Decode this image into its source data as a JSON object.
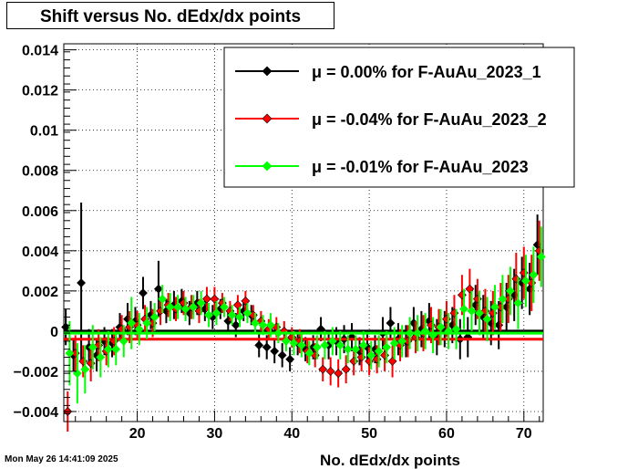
{
  "title": "Shift versus No. dEdx/dx points",
  "footer_timestamp": "Mon May 26 14:41:09 2025",
  "chart_data": {
    "type": "scatter",
    "title": "Shift versus No. dEdx/dx points",
    "xlabel": "No. dEdx/dx points",
    "ylabel": "",
    "xlim": [
      10.5,
      72.5
    ],
    "ylim": [
      -0.0045,
      0.0143
    ],
    "x_ticks": [
      20,
      30,
      40,
      50,
      60,
      70
    ],
    "y_ticks": [
      -0.004,
      -0.002,
      0,
      0.002,
      0.004,
      0.006,
      0.008,
      0.01,
      0.012,
      0.014
    ],
    "y_tick_labels": [
      "−0.004",
      "−0.002",
      "0",
      "0.002",
      "0.004",
      "0.006",
      "0.008",
      "0.01",
      "0.012",
      "0.014"
    ],
    "grid": true,
    "legend_position": "top-right",
    "series": [
      {
        "name": "μ =  0.00% for F-AuAu_2023_1",
        "color": "#000000",
        "mean": 0.0,
        "x": [
          11,
          12,
          13,
          14,
          15,
          16,
          17,
          18,
          19,
          20,
          21,
          22,
          23,
          24,
          25,
          26,
          27,
          28,
          29,
          30,
          31,
          32,
          33,
          34,
          35,
          36,
          37,
          38,
          39,
          40,
          41,
          42,
          43,
          44,
          45,
          46,
          47,
          48,
          49,
          50,
          51,
          52,
          53,
          54,
          55,
          56,
          57,
          58,
          59,
          60,
          61,
          62,
          63,
          64,
          65,
          66,
          67,
          68,
          69,
          70,
          71,
          72
        ],
        "y": [
          0.0002,
          -0.0012,
          0.0024,
          -0.0008,
          -0.0012,
          -0.0005,
          -0.0006,
          0.0002,
          0.0006,
          0.0005,
          0.0019,
          0.0008,
          0.0021,
          0.001,
          0.0013,
          0.0015,
          0.0009,
          0.0014,
          0.0011,
          0.0007,
          0.0011,
          0.0005,
          0.0003,
          0.001,
          0.0008,
          -0.0007,
          -0.0008,
          -0.001,
          -0.0012,
          -0.0014,
          -0.0006,
          -0.0009,
          -0.0008,
          0.0001,
          -0.0007,
          -0.0005,
          -0.0004,
          -0.0003,
          -0.001,
          -0.0008,
          -0.0009,
          -0.0001,
          0.0004,
          -0.0004,
          -0.0005,
          0.0004,
          0.0001,
          0.0005,
          -0.0003,
          0.0001,
          0.0003,
          -0.0004,
          -0.0003,
          0.0013,
          0.0007,
          0.0004,
          0.0003,
          0.0012,
          0.0018,
          0.0024,
          0.0021,
          0.0043
        ],
        "err": [
          0.0009,
          0.0008,
          0.004,
          0.0009,
          0.0008,
          0.0007,
          0.0007,
          0.0007,
          0.0008,
          0.0007,
          0.0008,
          0.0007,
          0.0014,
          0.0006,
          0.0007,
          0.0006,
          0.0006,
          0.0006,
          0.0006,
          0.0006,
          0.0005,
          0.0005,
          0.0006,
          0.0005,
          0.0005,
          0.0006,
          0.0006,
          0.0006,
          0.0006,
          0.0006,
          0.0006,
          0.0006,
          0.0006,
          0.0006,
          0.0007,
          0.0007,
          0.0007,
          0.0007,
          0.0007,
          0.0007,
          0.0007,
          0.0008,
          0.0008,
          0.0008,
          0.0008,
          0.0008,
          0.0009,
          0.0009,
          0.0009,
          0.0009,
          0.0009,
          0.001,
          0.001,
          0.001,
          0.0011,
          0.0011,
          0.0012,
          0.0012,
          0.0013,
          0.0013,
          0.0013,
          0.0015
        ]
      },
      {
        "name": "μ = -0.04% for F-AuAu_2023_2",
        "color": "#ff0000",
        "mean": -0.0004,
        "x": [
          11,
          12,
          13,
          14,
          15,
          16,
          17,
          18,
          19,
          20,
          21,
          22,
          23,
          24,
          25,
          26,
          27,
          28,
          29,
          30,
          31,
          32,
          33,
          34,
          35,
          36,
          37,
          38,
          39,
          40,
          41,
          42,
          43,
          44,
          45,
          46,
          47,
          48,
          49,
          50,
          51,
          52,
          53,
          54,
          55,
          56,
          57,
          58,
          59,
          60,
          61,
          62,
          63,
          64,
          65,
          66,
          67,
          68,
          69,
          70,
          71,
          72
        ],
        "y": [
          -0.004,
          -0.0011,
          -0.0015,
          -0.0016,
          -0.0007,
          -0.001,
          -0.0005,
          0.0001,
          0.0002,
          0.0003,
          0.0006,
          0.0004,
          0.001,
          0.0013,
          0.0011,
          0.0014,
          0.0012,
          0.001,
          0.0016,
          0.0016,
          0.0014,
          0.001,
          0.0013,
          0.0015,
          0.0008,
          0.0005,
          0.0001,
          0.0002,
          0.0,
          -0.0003,
          -0.0005,
          -0.001,
          -0.0012,
          -0.0019,
          -0.002,
          -0.0021,
          -0.0019,
          -0.0015,
          -0.0013,
          -0.0015,
          -0.0014,
          -0.0012,
          -0.0015,
          -0.0007,
          -0.0005,
          -0.0003,
          -0.0001,
          0.0003,
          0.0002,
          0.0006,
          0.0009,
          0.0018,
          0.0021,
          0.0016,
          0.001,
          0.0009,
          0.0012,
          0.0016,
          0.0026,
          0.0029,
          0.0024,
          0.004
        ],
        "err": [
          0.001,
          0.0009,
          0.0008,
          0.0009,
          0.0008,
          0.0007,
          0.0007,
          0.0007,
          0.0008,
          0.0007,
          0.0007,
          0.0007,
          0.0007,
          0.0006,
          0.0006,
          0.0006,
          0.0006,
          0.0006,
          0.0006,
          0.0006,
          0.0005,
          0.0005,
          0.0005,
          0.0005,
          0.0005,
          0.0005,
          0.0005,
          0.0005,
          0.0005,
          0.0005,
          0.0006,
          0.0006,
          0.0006,
          0.0006,
          0.0007,
          0.0007,
          0.0007,
          0.0007,
          0.0007,
          0.0007,
          0.0007,
          0.0008,
          0.0008,
          0.0008,
          0.0008,
          0.0008,
          0.0009,
          0.0009,
          0.0009,
          0.0009,
          0.0009,
          0.001,
          0.001,
          0.001,
          0.0011,
          0.0011,
          0.0012,
          0.0012,
          0.0013,
          0.0013,
          0.0014,
          0.0015
        ]
      },
      {
        "name": "μ = -0.01% for F-AuAu_2023",
        "color": "#00ff00",
        "mean": -0.0001,
        "x": [
          11,
          12,
          13,
          14,
          15,
          16,
          17,
          18,
          19,
          20,
          21,
          22,
          23,
          24,
          25,
          26,
          27,
          28,
          29,
          30,
          31,
          32,
          33,
          34,
          35,
          36,
          37,
          38,
          39,
          40,
          41,
          42,
          43,
          44,
          45,
          46,
          47,
          48,
          49,
          50,
          51,
          52,
          53,
          54,
          55,
          56,
          57,
          58,
          59,
          60,
          61,
          62,
          63,
          64,
          65,
          66,
          67,
          68,
          69,
          70,
          71,
          72
        ],
        "y": [
          -0.0011,
          -0.0021,
          -0.0019,
          -0.0008,
          -0.0013,
          -0.0009,
          -0.0009,
          -0.0005,
          0.0004,
          0.0001,
          0.0004,
          0.0007,
          0.0016,
          0.0012,
          0.0012,
          0.0011,
          0.0012,
          0.0014,
          0.0008,
          0.0009,
          0.0012,
          0.0008,
          0.0007,
          0.0009,
          0.0004,
          0.0003,
          0.0003,
          -0.0001,
          -0.0005,
          -0.0006,
          -0.0007,
          -0.0011,
          -0.0008,
          -0.0007,
          -0.0005,
          -0.0007,
          -0.0009,
          -0.0009,
          -0.0007,
          -0.0012,
          -0.001,
          -0.0008,
          -0.0006,
          -0.0005,
          -0.0001,
          -0.0001,
          0.0,
          -0.0002,
          0.0002,
          0.0,
          0.0001,
          0.0011,
          0.001,
          0.0009,
          0.0006,
          0.0012,
          0.0016,
          0.002,
          0.0014,
          0.0025,
          0.0028,
          0.0037
        ],
        "err": [
          0.0016,
          0.0015,
          0.0012,
          0.0011,
          0.001,
          0.0009,
          0.0008,
          0.0008,
          0.0013,
          0.0008,
          0.0008,
          0.0007,
          0.0007,
          0.0007,
          0.0006,
          0.0006,
          0.0006,
          0.0006,
          0.0006,
          0.0006,
          0.0005,
          0.0005,
          0.0005,
          0.0005,
          0.0005,
          0.0005,
          0.0006,
          0.0005,
          0.0005,
          0.0006,
          0.0006,
          0.0006,
          0.0006,
          0.0007,
          0.0007,
          0.0007,
          0.0007,
          0.0007,
          0.0007,
          0.0007,
          0.0008,
          0.0008,
          0.0008,
          0.0008,
          0.0008,
          0.0009,
          0.0009,
          0.0009,
          0.0009,
          0.0009,
          0.001,
          0.001,
          0.001,
          0.0011,
          0.0011,
          0.0011,
          0.0012,
          0.0012,
          0.0013,
          0.0013,
          0.0014,
          0.0015
        ]
      }
    ]
  }
}
